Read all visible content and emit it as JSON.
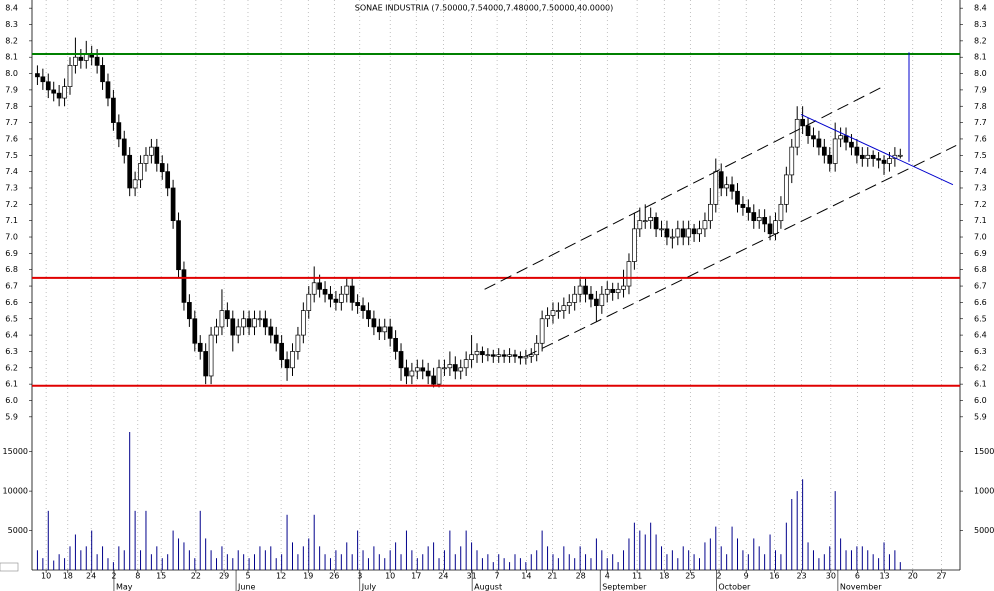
{
  "chart_data": {
    "type": "candlestick",
    "title": "SONAE INDUSTRIA (7.50000,7.54000,7.48000,7.50000,40.0000)",
    "x": [
      1,
      2,
      3,
      4,
      5,
      6,
      7,
      8,
      9,
      10,
      11,
      12,
      13,
      14,
      15,
      16,
      17,
      18,
      19,
      20,
      21,
      22,
      23,
      24,
      25,
      26,
      27,
      28,
      29,
      30,
      31,
      32,
      33,
      34,
      35,
      36,
      37,
      38,
      39,
      40,
      41,
      42,
      43,
      44,
      45,
      46,
      47,
      48,
      49,
      50,
      51,
      52,
      53,
      54,
      55,
      56,
      57,
      58,
      59,
      60,
      61,
      62,
      63,
      64,
      65,
      66,
      67,
      68,
      69,
      70,
      71,
      72,
      73,
      74,
      75,
      76,
      77,
      78,
      79,
      80,
      81,
      82,
      83,
      84,
      85,
      86,
      87,
      88,
      89,
      90,
      91,
      92,
      93,
      94,
      95,
      96,
      97,
      98,
      99,
      100,
      101,
      102,
      103,
      104,
      105,
      106,
      107,
      108,
      109,
      110,
      111,
      112,
      113,
      114,
      115,
      116,
      117,
      118,
      119,
      120,
      121,
      122,
      123,
      124,
      125,
      126,
      127,
      128,
      129,
      130,
      131,
      132,
      133,
      134,
      135,
      136,
      137,
      138,
      139,
      140,
      141,
      142,
      143,
      144,
      145,
      146,
      147,
      148,
      149,
      150,
      151,
      152,
      153,
      154,
      155,
      156,
      157,
      158,
      159,
      160
    ],
    "open": [
      8.0,
      7.98,
      7.95,
      7.9,
      7.88,
      7.85,
      7.92,
      8.05,
      8.1,
      8.08,
      8.12,
      8.1,
      8.05,
      7.95,
      7.85,
      7.7,
      7.6,
      7.5,
      7.3,
      7.35,
      7.45,
      7.5,
      7.55,
      7.45,
      7.4,
      7.3,
      7.1,
      6.8,
      6.6,
      6.5,
      6.35,
      6.3,
      6.15,
      6.4,
      6.45,
      6.55,
      6.5,
      6.4,
      6.45,
      6.5,
      6.45,
      6.5,
      6.5,
      6.45,
      6.4,
      6.35,
      6.25,
      6.2,
      6.3,
      6.4,
      6.55,
      6.65,
      6.72,
      6.68,
      6.65,
      6.62,
      6.6,
      6.65,
      6.7,
      6.6,
      6.58,
      6.55,
      6.5,
      6.45,
      6.42,
      6.45,
      6.38,
      6.3,
      6.2,
      6.15,
      6.18,
      6.2,
      6.18,
      6.15,
      6.1,
      6.2,
      6.2,
      6.22,
      6.18,
      6.2,
      6.25,
      6.28,
      6.3,
      6.28,
      6.28,
      6.27,
      6.28,
      6.27,
      6.28,
      6.27,
      6.26,
      6.27,
      6.28,
      6.35,
      6.5,
      6.52,
      6.55,
      6.55,
      6.58,
      6.6,
      6.65,
      6.7,
      6.65,
      6.62,
      6.58,
      6.65,
      6.68,
      6.66,
      6.68,
      6.7,
      6.85,
      7.05,
      7.1,
      7.1,
      7.12,
      7.05,
      7.05,
      7.0,
      7.0,
      7.05,
      7.0,
      7.05,
      7.02,
      7.05,
      7.1,
      7.2,
      7.4,
      7.3,
      7.32,
      7.28,
      7.2,
      7.18,
      7.15,
      7.1,
      7.12,
      7.08,
      7.02,
      7.1,
      7.2,
      7.38,
      7.55,
      7.72,
      7.68,
      7.62,
      7.6,
      7.55,
      7.5,
      7.45,
      7.6,
      7.62,
      7.58,
      7.55,
      7.5,
      7.48,
      7.5,
      7.48,
      7.47,
      7.45,
      7.48,
      7.5
    ],
    "high": [
      8.05,
      8.03,
      8.0,
      7.95,
      7.93,
      7.97,
      8.1,
      8.22,
      8.15,
      8.2,
      8.17,
      8.15,
      8.1,
      8.0,
      7.9,
      7.75,
      7.65,
      7.55,
      7.4,
      7.5,
      7.55,
      7.6,
      7.6,
      7.5,
      7.45,
      7.35,
      7.15,
      6.85,
      6.65,
      6.55,
      6.4,
      6.35,
      6.45,
      6.5,
      6.68,
      6.6,
      6.55,
      6.5,
      6.55,
      6.55,
      6.55,
      6.55,
      6.55,
      6.5,
      6.45,
      6.4,
      6.3,
      6.35,
      6.45,
      6.6,
      6.7,
      6.82,
      6.77,
      6.73,
      6.7,
      6.67,
      6.7,
      6.75,
      6.75,
      6.65,
      6.63,
      6.6,
      6.55,
      6.5,
      6.5,
      6.5,
      6.43,
      6.35,
      6.25,
      6.23,
      6.25,
      6.25,
      6.23,
      6.2,
      6.25,
      6.25,
      6.3,
      6.27,
      6.25,
      6.3,
      6.4,
      6.35,
      6.33,
      6.32,
      6.31,
      6.32,
      6.31,
      6.32,
      6.31,
      6.3,
      6.31,
      6.32,
      6.4,
      6.55,
      6.57,
      6.6,
      6.6,
      6.63,
      6.65,
      6.7,
      6.75,
      6.75,
      6.7,
      6.67,
      6.7,
      6.73,
      6.72,
      6.72,
      6.8,
      6.9,
      7.15,
      7.18,
      7.2,
      7.18,
      7.15,
      7.1,
      7.1,
      7.05,
      7.1,
      7.1,
      7.1,
      7.08,
      7.1,
      7.15,
      7.3,
      7.48,
      7.45,
      7.37,
      7.37,
      7.33,
      7.25,
      7.23,
      7.2,
      7.17,
      7.17,
      7.13,
      7.15,
      7.25,
      7.43,
      7.6,
      7.8,
      7.8,
      7.73,
      7.67,
      7.65,
      7.6,
      7.55,
      7.7,
      7.67,
      7.67,
      7.63,
      7.6,
      7.55,
      7.55,
      7.53,
      7.52,
      7.5,
      7.52,
      7.55,
      7.54
    ],
    "low": [
      7.93,
      7.9,
      7.85,
      7.83,
      7.8,
      7.8,
      7.87,
      8.0,
      8.03,
      8.03,
      8.05,
      8.0,
      7.9,
      7.8,
      7.65,
      7.55,
      7.45,
      7.25,
      7.25,
      7.3,
      7.4,
      7.45,
      7.4,
      7.35,
      7.25,
      7.05,
      6.75,
      6.55,
      6.45,
      6.3,
      6.25,
      6.1,
      6.1,
      6.35,
      6.4,
      6.45,
      6.3,
      6.35,
      6.4,
      6.4,
      6.4,
      6.45,
      6.4,
      6.35,
      6.3,
      6.2,
      6.12,
      6.15,
      6.25,
      6.35,
      6.5,
      6.6,
      6.63,
      6.6,
      6.57,
      6.55,
      6.55,
      6.6,
      6.55,
      6.53,
      6.5,
      6.45,
      6.4,
      6.37,
      6.37,
      6.33,
      6.25,
      6.12,
      6.1,
      6.1,
      6.13,
      6.13,
      6.1,
      6.08,
      6.08,
      6.15,
      6.15,
      6.13,
      6.13,
      6.15,
      6.2,
      6.23,
      6.23,
      6.24,
      6.23,
      6.23,
      6.23,
      6.23,
      6.23,
      6.22,
      6.22,
      6.23,
      6.24,
      6.3,
      6.45,
      6.47,
      6.5,
      6.5,
      6.53,
      6.55,
      6.6,
      6.6,
      6.57,
      6.48,
      6.53,
      6.6,
      6.61,
      6.62,
      6.63,
      6.65,
      6.8,
      7.0,
      7.05,
      7.05,
      7.0,
      7.0,
      6.95,
      6.93,
      6.95,
      6.95,
      6.95,
      6.97,
      6.97,
      7.0,
      7.05,
      7.15,
      7.25,
      7.25,
      7.23,
      7.15,
      7.13,
      7.1,
      7.05,
      7.05,
      7.03,
      6.98,
      6.98,
      7.05,
      7.15,
      7.33,
      7.5,
      7.63,
      7.57,
      7.55,
      7.5,
      7.45,
      7.4,
      7.4,
      7.55,
      7.53,
      7.5,
      7.45,
      7.43,
      7.43,
      7.43,
      7.42,
      7.38,
      7.4,
      7.43,
      7.48
    ],
    "close": [
      7.98,
      7.95,
      7.9,
      7.88,
      7.85,
      7.92,
      8.05,
      8.1,
      8.08,
      8.12,
      8.1,
      8.05,
      7.95,
      7.85,
      7.7,
      7.6,
      7.5,
      7.3,
      7.35,
      7.45,
      7.5,
      7.55,
      7.45,
      7.4,
      7.3,
      7.1,
      6.8,
      6.6,
      6.5,
      6.35,
      6.3,
      6.15,
      6.4,
      6.45,
      6.55,
      6.5,
      6.4,
      6.45,
      6.5,
      6.45,
      6.5,
      6.5,
      6.45,
      6.4,
      6.35,
      6.25,
      6.2,
      6.3,
      6.4,
      6.55,
      6.65,
      6.72,
      6.68,
      6.65,
      6.62,
      6.6,
      6.65,
      6.7,
      6.6,
      6.58,
      6.55,
      6.5,
      6.45,
      6.42,
      6.45,
      6.38,
      6.3,
      6.2,
      6.15,
      6.18,
      6.2,
      6.18,
      6.15,
      6.1,
      6.2,
      6.2,
      6.22,
      6.18,
      6.2,
      6.25,
      6.28,
      6.3,
      6.28,
      6.28,
      6.27,
      6.28,
      6.27,
      6.28,
      6.27,
      6.26,
      6.27,
      6.28,
      6.35,
      6.5,
      6.52,
      6.55,
      6.55,
      6.58,
      6.6,
      6.65,
      6.7,
      6.65,
      6.62,
      6.58,
      6.65,
      6.68,
      6.66,
      6.68,
      6.7,
      6.85,
      7.05,
      7.1,
      7.1,
      7.12,
      7.05,
      7.05,
      7.0,
      7.0,
      7.05,
      7.0,
      7.05,
      7.02,
      7.05,
      7.1,
      7.2,
      7.4,
      7.3,
      7.32,
      7.28,
      7.2,
      7.18,
      7.15,
      7.1,
      7.12,
      7.08,
      7.02,
      7.1,
      7.2,
      7.38,
      7.55,
      7.72,
      7.68,
      7.62,
      7.6,
      7.55,
      7.5,
      7.45,
      7.6,
      7.62,
      7.58,
      7.55,
      7.5,
      7.48,
      7.5,
      7.48,
      7.47,
      7.45,
      7.48,
      7.5,
      7.5
    ],
    "up_color": "#ffffff",
    "down_color": "#000000",
    "xlim": [
      0,
      171
    ],
    "xticks": [
      {
        "value": 2.6,
        "label": "10"
      },
      {
        "value": 6.6,
        "label": "18"
      },
      {
        "value": 10.9,
        "label": "24"
      },
      {
        "value": 15.1,
        "label": "2"
      },
      {
        "value": 19.5,
        "label": "8"
      },
      {
        "value": 23.8,
        "label": "15"
      },
      {
        "value": 30.2,
        "label": "22"
      },
      {
        "value": 35.4,
        "label": "29"
      },
      {
        "value": 39.8,
        "label": "5"
      },
      {
        "value": 45.9,
        "label": "12"
      },
      {
        "value": 50.9,
        "label": "19"
      },
      {
        "value": 55.7,
        "label": "26"
      },
      {
        "value": 60.4,
        "label": "3"
      },
      {
        "value": 66,
        "label": "10"
      },
      {
        "value": 70.8,
        "label": "17"
      },
      {
        "value": 75.8,
        "label": "24"
      },
      {
        "value": 81,
        "label": "31"
      },
      {
        "value": 85.7,
        "label": "7"
      },
      {
        "value": 91.1,
        "label": "14"
      },
      {
        "value": 95.9,
        "label": "21"
      },
      {
        "value": 101.1,
        "label": "28"
      },
      {
        "value": 106,
        "label": "4"
      },
      {
        "value": 111.5,
        "label": "11"
      },
      {
        "value": 116.5,
        "label": "18"
      },
      {
        "value": 121.3,
        "label": "25"
      },
      {
        "value": 126.6,
        "label": "2"
      },
      {
        "value": 131.6,
        "label": "9"
      },
      {
        "value": 136.8,
        "label": "16"
      },
      {
        "value": 141.8,
        "label": "23"
      },
      {
        "value": 147.2,
        "label": "30"
      },
      {
        "value": 152.1,
        "label": "6"
      },
      {
        "value": 157.1,
        "label": "13"
      },
      {
        "value": 162.3,
        "label": "20"
      },
      {
        "value": 167.6,
        "label": "27"
      }
    ],
    "months": [
      {
        "value": 15.1,
        "label": "May"
      },
      {
        "value": 37.6,
        "label": "June"
      },
      {
        "value": 60.4,
        "label": "July"
      },
      {
        "value": 81.1,
        "label": "August"
      },
      {
        "value": 104.7,
        "label": "September"
      },
      {
        "value": 126.1,
        "label": "October"
      },
      {
        "value": 148.5,
        "label": "November"
      }
    ],
    "ylim": [
      5.85,
      8.45
    ],
    "yticks": [
      5.9,
      {
        "value": 6,
        "label": "6.0"
      },
      6.1,
      6.2,
      6.3,
      6.4,
      6.5,
      6.6,
      6.7,
      6.8,
      6.9,
      {
        "value": 7,
        "label": "7.0"
      },
      7.1,
      7.2,
      7.3,
      7.4,
      7.5,
      7.6,
      7.7,
      7.8,
      7.9,
      {
        "value": 8,
        "label": "8.0"
      },
      8.1,
      8.2,
      8.3,
      8.4
    ],
    "grid": true,
    "volume": {
      "color": "#00008b",
      "ylim": [
        0,
        18000
      ],
      "yticks": [
        5000,
        10000,
        15000
      ],
      "values": [
        2500,
        1500,
        7500,
        1200,
        2000,
        1500,
        3000,
        4500,
        2500,
        3000,
        5000,
        2000,
        3000,
        1500,
        1000,
        3000,
        2500,
        17500,
        7500,
        2500,
        7500,
        2000,
        3000,
        1500,
        2000,
        5000,
        4000,
        3500,
        2500,
        1500,
        7500,
        4000,
        2500,
        1500,
        3000,
        2000,
        1500,
        2500,
        2000,
        1500,
        2000,
        3000,
        2500,
        3000,
        1500,
        2000,
        7000,
        3500,
        2000,
        3000,
        4000,
        7000,
        3000,
        2000,
        1500,
        2500,
        2000,
        3500,
        2000,
        5000,
        2500,
        1500,
        3000,
        2000,
        1500,
        2500,
        3500,
        2000,
        5000,
        2500,
        1500,
        2000,
        3000,
        3500,
        1500,
        2500,
        5000,
        2000,
        3000,
        5000,
        3500,
        2500,
        1500,
        2000,
        1000,
        2000,
        1500,
        1000,
        2000,
        1500,
        1000,
        2000,
        2500,
        5000,
        3000,
        2000,
        1500,
        3000,
        2000,
        1500,
        3000,
        2000,
        1500,
        4000,
        2500,
        1500,
        2000,
        1000,
        2500,
        4000,
        6000,
        5000,
        4500,
        6000,
        4500,
        3000,
        2000,
        2500,
        1500,
        3000,
        2500,
        2000,
        1500,
        3500,
        4000,
        5500,
        3000,
        2000,
        5500,
        4000,
        2500,
        2000,
        4000,
        3000,
        2000,
        4500,
        2500,
        2000,
        6000,
        9000,
        10000,
        11500,
        3500,
        2500,
        1500,
        2000,
        3000,
        10000,
        4000,
        2500,
        2500,
        3000,
        3000,
        2500,
        2000,
        1500,
        3500,
        2000,
        2500,
        1000
      ]
    },
    "lines": [
      {
        "color": "#008000",
        "dash": false,
        "x": [
          0,
          171
        ],
        "y": [
          8.12,
          8.12
        ]
      },
      {
        "color": "#e00000",
        "dash": false,
        "x": [
          0,
          171
        ],
        "y": [
          6.75,
          6.75
        ]
      },
      {
        "color": "#e00000",
        "dash": false,
        "x": [
          0,
          171
        ],
        "y": [
          6.09,
          6.09
        ]
      },
      {
        "color": "#000000",
        "dash": true,
        "x": [
          83.4,
          156.8
        ],
        "y": [
          6.68,
          7.92
        ]
      },
      {
        "color": "#000000",
        "dash": true,
        "x": [
          91,
          170.3
        ],
        "y": [
          6.27,
          7.56
        ]
      },
      {
        "color": "#0000cc",
        "dash": false,
        "x": [
          141.7,
          169.7
        ],
        "y": [
          7.75,
          7.32
        ]
      },
      {
        "color": "#0000cc",
        "dash": false,
        "x": [
          161.6,
          161.6
        ],
        "y": [
          8.13,
          7.46
        ]
      }
    ]
  }
}
